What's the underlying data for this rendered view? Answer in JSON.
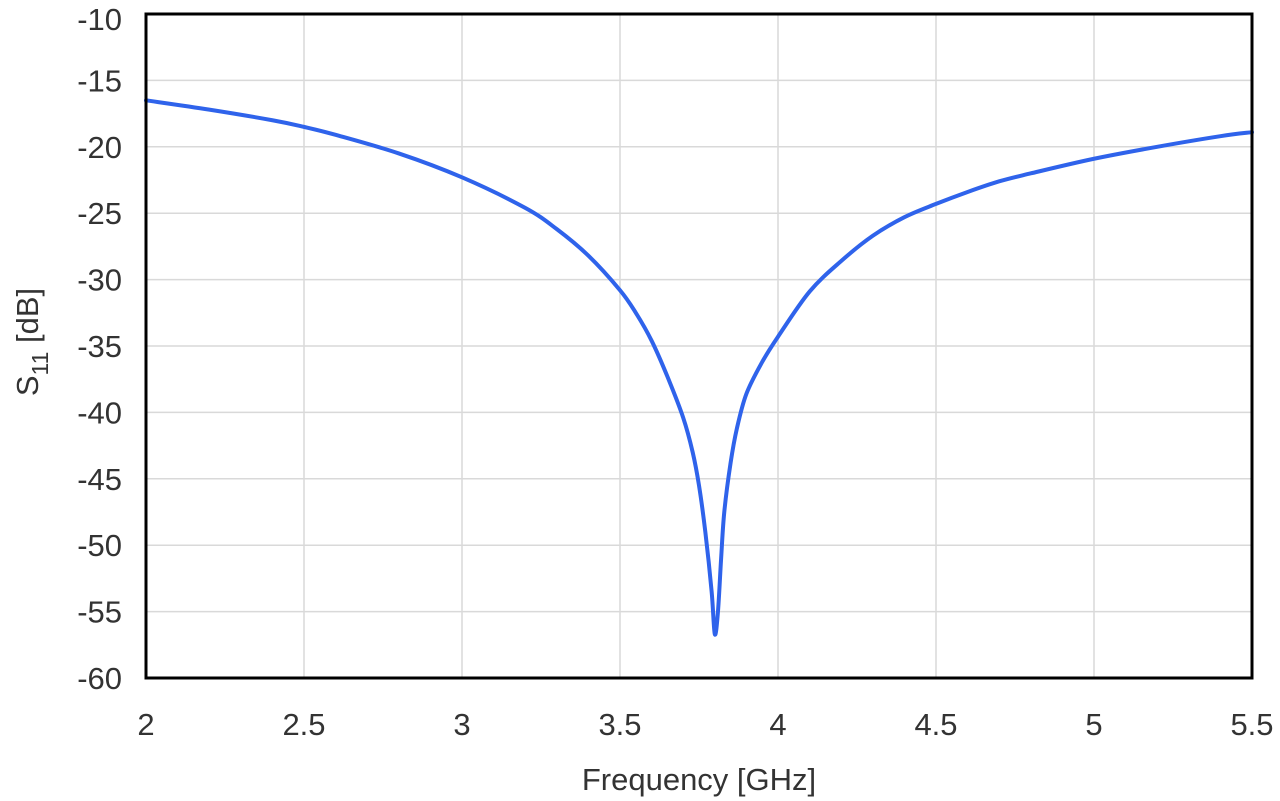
{
  "chart_data": {
    "type": "line",
    "title": "",
    "xlabel": "Frequency [GHz]",
    "ylabel_main": "S",
    "ylabel_sub": "11",
    "ylabel_unit": " [dB]",
    "xlim": [
      2,
      5.5
    ],
    "ylim": [
      -60,
      -10
    ],
    "xticks": [
      2,
      2.5,
      3,
      3.5,
      4,
      4.5,
      5,
      5.5
    ],
    "xtick_labels": [
      "2",
      "2.5",
      "3",
      "3.5",
      "4",
      "4.5",
      "5",
      "5.5"
    ],
    "yticks": [
      -10,
      -15,
      -20,
      -25,
      -30,
      -35,
      -40,
      -45,
      -50,
      -55,
      -60
    ],
    "ytick_labels": [
      "-10",
      "-15",
      "-20",
      "-25",
      "-30",
      "-35",
      "-40",
      "-45",
      "-50",
      "-55",
      "-60"
    ],
    "grid": true,
    "legend": false,
    "series": [
      {
        "color": "#2f63eb",
        "x": [
          2.0,
          2.2,
          2.4,
          2.5,
          2.6,
          2.8,
          3.0,
          3.2,
          3.3,
          3.4,
          3.5,
          3.55,
          3.6,
          3.65,
          3.7,
          3.73,
          3.75,
          3.77,
          3.79,
          3.8,
          3.81,
          3.82,
          3.83,
          3.85,
          3.87,
          3.9,
          3.95,
          4.0,
          4.1,
          4.2,
          4.3,
          4.4,
          4.5,
          4.6,
          4.7,
          4.8,
          5.0,
          5.2,
          5.4,
          5.5
        ],
        "y": [
          -16.5,
          -17.2,
          -18.0,
          -18.5,
          -19.1,
          -20.5,
          -22.3,
          -24.6,
          -26.2,
          -28.2,
          -30.8,
          -32.5,
          -34.6,
          -37.3,
          -40.4,
          -43.0,
          -45.5,
          -49.0,
          -53.5,
          -56.7,
          -55.0,
          -51.0,
          -47.5,
          -43.8,
          -41.2,
          -38.6,
          -36.2,
          -34.3,
          -30.9,
          -28.6,
          -26.7,
          -25.3,
          -24.3,
          -23.4,
          -22.6,
          -22.0,
          -20.9,
          -20.0,
          -19.2,
          -18.9
        ]
      }
    ]
  }
}
